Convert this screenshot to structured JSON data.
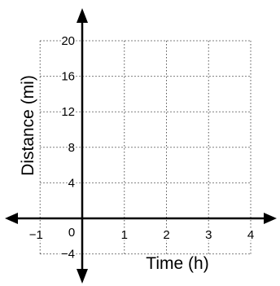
{
  "chart_data": {
    "type": "scatter",
    "title": "",
    "xlabel": "Time (h)",
    "ylabel": "Distance (mi)",
    "xlim": [
      -1,
      4
    ],
    "ylim": [
      -4,
      20
    ],
    "x_ticks": [
      "−1",
      "0",
      "1",
      "2",
      "3",
      "4"
    ],
    "y_ticks": [
      "−4",
      "4",
      "8",
      "12",
      "16",
      "20"
    ],
    "grid": true,
    "series": []
  }
}
